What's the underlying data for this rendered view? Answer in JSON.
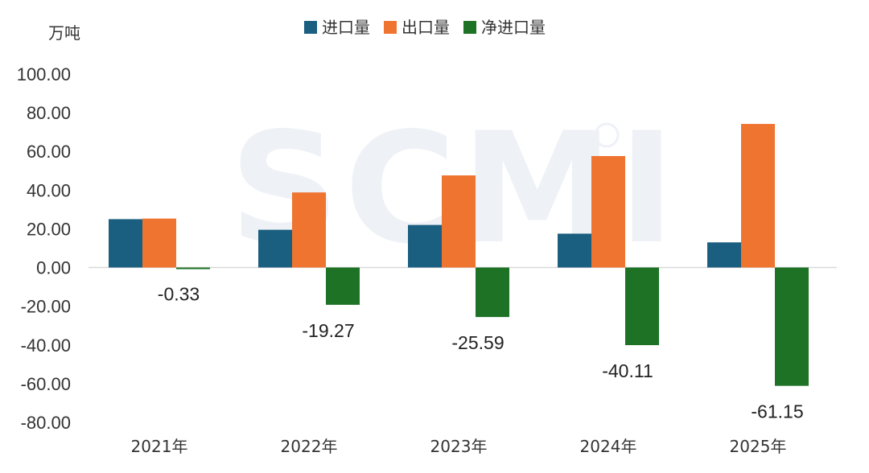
{
  "chart_data": {
    "type": "bar",
    "unit_label": "万吨",
    "categories": [
      "2021年",
      "2022年",
      "2023年",
      "2024年",
      "2025年"
    ],
    "series": [
      {
        "name": "进口量",
        "color": "#1b5f80",
        "values": [
          25.0,
          19.5,
          22.0,
          17.5,
          13.0
        ]
      },
      {
        "name": "出口量",
        "color": "#ef7430",
        "values": [
          25.3,
          38.8,
          47.6,
          57.6,
          74.2
        ]
      },
      {
        "name": "净进口量",
        "color": "#1e7226",
        "values": [
          -0.33,
          -19.27,
          -25.59,
          -40.11,
          -61.15
        ]
      }
    ],
    "data_labels": [
      "-0.33",
      "-19.27",
      "-25.59",
      "-40.11",
      "-61.15"
    ],
    "y_ticks": [
      "100.00",
      "80.00",
      "60.00",
      "40.00",
      "20.00",
      "0.00",
      "-20.00",
      "-40.00",
      "-60.00",
      "-80.00"
    ],
    "ylim": [
      -80,
      100
    ],
    "grid": false,
    "legend_position": "top",
    "watermark": "SCMI"
  }
}
